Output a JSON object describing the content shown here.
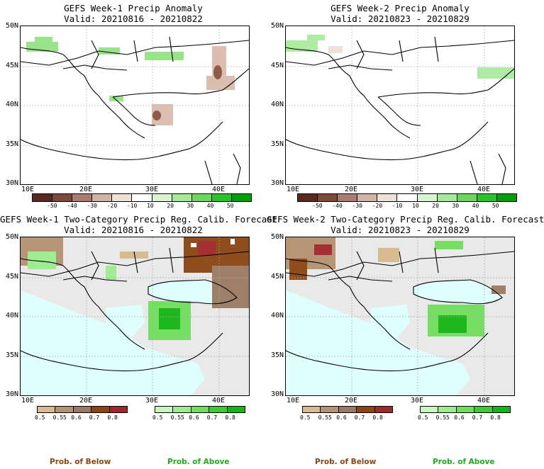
{
  "panels": [
    {
      "title1": "GEFS Week-1 Precip Anomaly",
      "title2": "Valid: 20210816 - 20210822"
    },
    {
      "title1": "GEFS Week-2 Precip Anomaly",
      "title2": "Valid: 20210823 - 20210829"
    },
    {
      "title1": "GEFS Week-1 Two-Category Precip Reg. Calib. Forecast",
      "title2": "Valid: 20210816 - 20210822"
    },
    {
      "title1": "GEFS Week-2 Two-Category Precip Reg. Calib. Forecast",
      "title2": "Valid: 20210823 - 20210829"
    }
  ],
  "lat_labels": [
    "50N",
    "45N",
    "40N",
    "35N",
    "30N"
  ],
  "lon_labels": [
    "10E",
    "20E",
    "30E",
    "40E"
  ],
  "anomaly_colorbar": {
    "ticks": [
      "-50",
      "-40",
      "-30",
      "-20",
      "-10",
      "10",
      "20",
      "30",
      "40",
      "50"
    ],
    "colors": [
      "#5a2a1e",
      "#7d4a3a",
      "#a87d6d",
      "#d2b4a6",
      "#efe1d9",
      "#ffffff",
      "#d8f5d0",
      "#a6e99a",
      "#6ed75e",
      "#33bf2c",
      "#0b9a0b"
    ]
  },
  "below_colorbar": {
    "ticks": [
      "0.5",
      "0.55",
      "0.6",
      "0.7",
      "0.8"
    ],
    "colors": [
      "#d9b98e",
      "#b59271",
      "#9a7a62",
      "#8b4513",
      "#a0282a"
    ]
  },
  "above_colorbar": {
    "ticks": [
      "0.5",
      "0.55",
      "0.6",
      "0.7",
      "0.8"
    ],
    "colors": [
      "#c8f5c0",
      "#9ded8e",
      "#70de5c",
      "#3ecb32",
      "#14b514"
    ]
  },
  "legend": {
    "below": "Prob. of Below",
    "above": "Prob. of Above"
  }
}
